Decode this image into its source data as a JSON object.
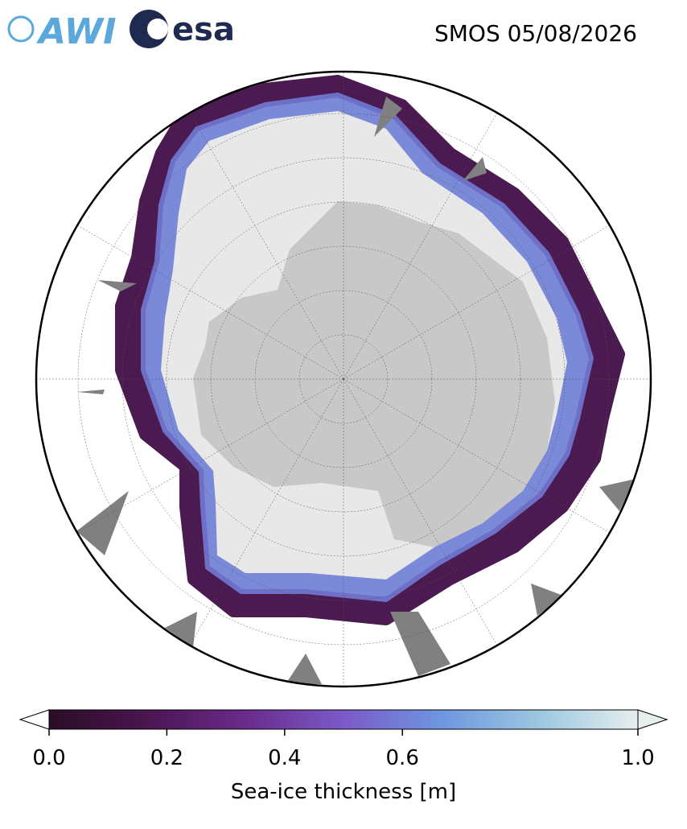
{
  "header": {
    "logos": [
      "AWI",
      "esa"
    ],
    "title": "SMOS 05/08/2026"
  },
  "colorbar": {
    "label": "Sea-ice thickness [m]",
    "range": [
      0,
      1
    ],
    "ticks": [
      {
        "value": 0,
        "label": "0.0"
      },
      0.2,
      0.4,
      0.6,
      {
        "value": 1,
        "label": "1.0"
      }
    ],
    "colors": [
      "#2a0d26",
      "#4a1550",
      "#6a2a8c",
      "#7a5ac8",
      "#6e96e0",
      "#9cc8e0",
      "#e6eeee"
    ]
  }
}
